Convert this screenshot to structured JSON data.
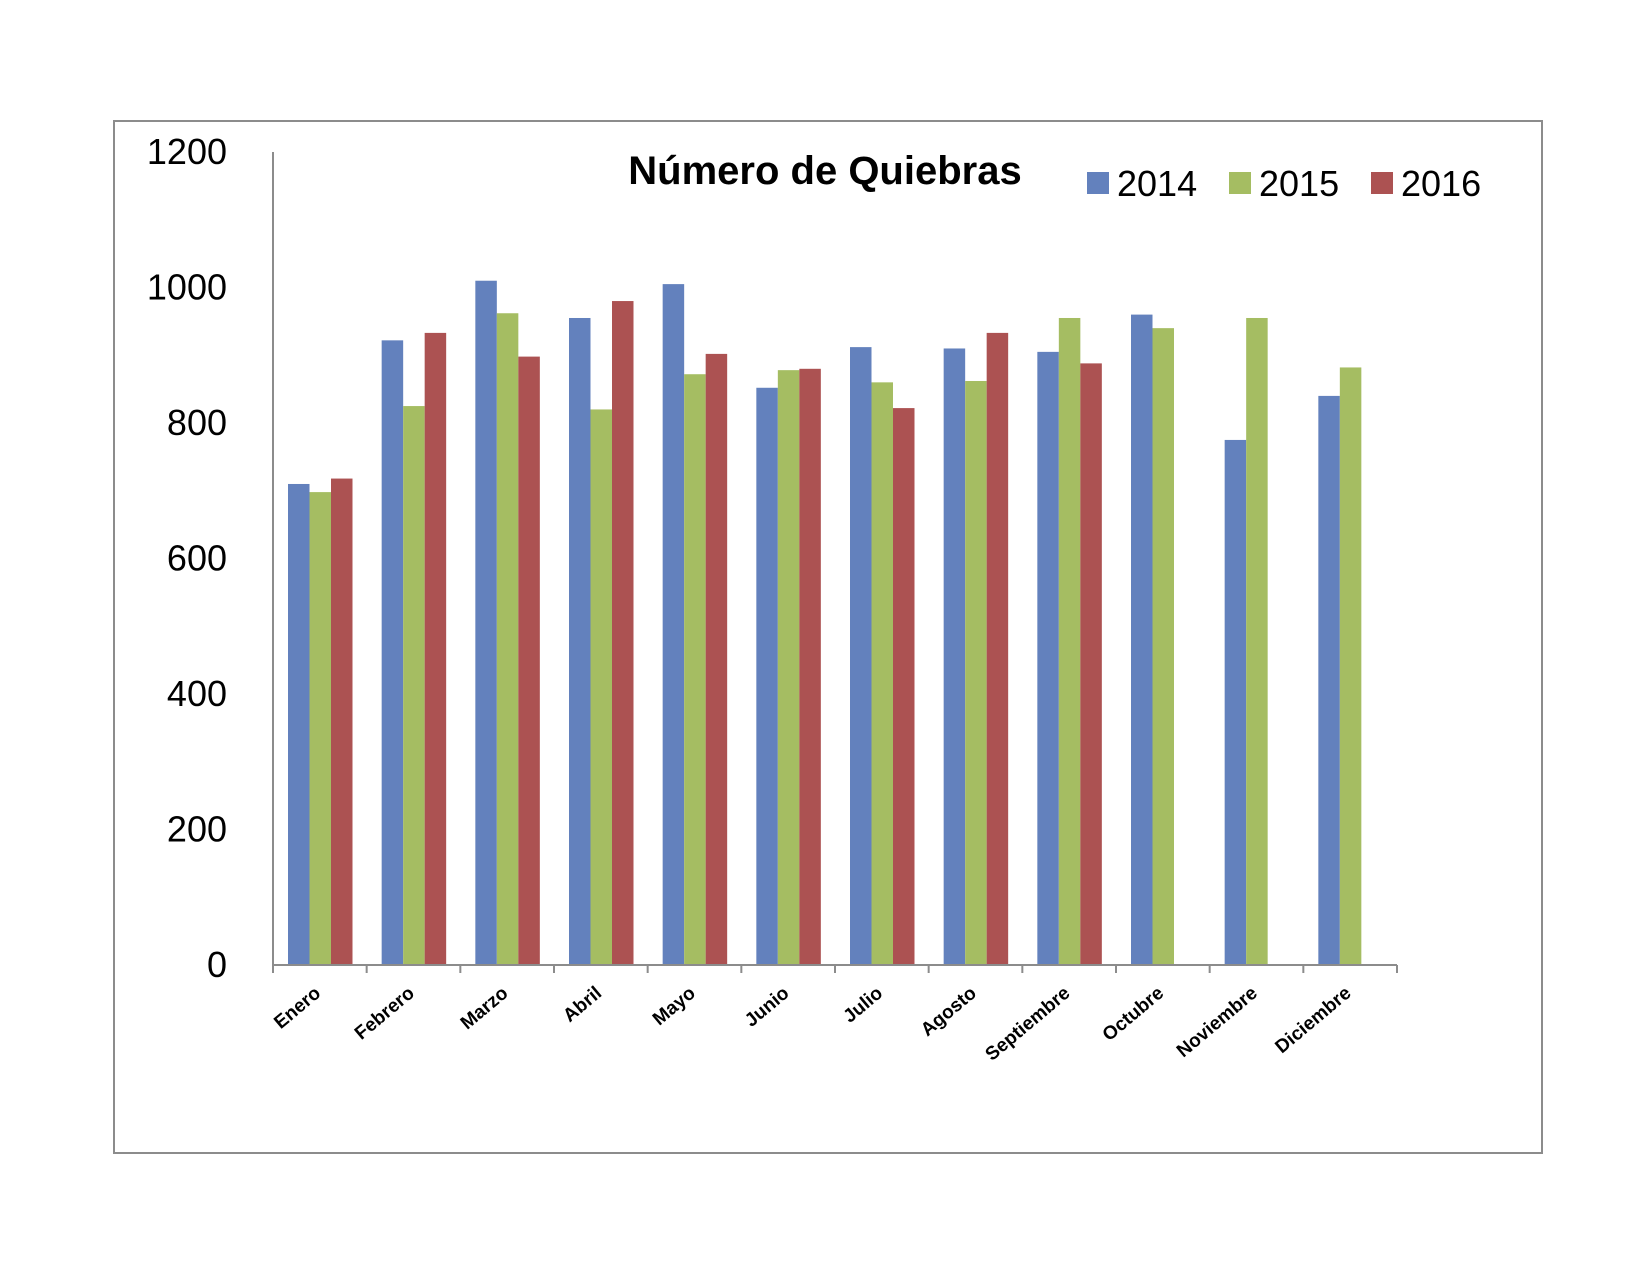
{
  "chart_data": {
    "type": "bar",
    "title": "Número de Quiebras",
    "xlabel": "",
    "ylabel": "",
    "ylim": [
      0,
      1200
    ],
    "yticks": [
      0,
      200,
      400,
      600,
      800,
      1000,
      1200
    ],
    "grid": false,
    "legend_position": "top-right",
    "categories": [
      "Enero",
      "Febrero",
      "Marzo",
      "Abril",
      "Mayo",
      "Junio",
      "Julio",
      "Agosto",
      "Septiembre",
      "Octubre",
      "Noviembre",
      "Diciembre"
    ],
    "series": [
      {
        "name": "2014",
        "color": "#6381bd",
        "values": [
          710,
          922,
          1010,
          955,
          1005,
          852,
          912,
          910,
          905,
          960,
          775,
          840
        ]
      },
      {
        "name": "2015",
        "color": "#a5bd62",
        "values": [
          698,
          825,
          962,
          820,
          872,
          878,
          860,
          862,
          955,
          940,
          955,
          882
        ]
      },
      {
        "name": "2016",
        "color": "#ac5252",
        "values": [
          718,
          933,
          898,
          980,
          902,
          880,
          822,
          933,
          888,
          null,
          null,
          null
        ]
      }
    ]
  }
}
